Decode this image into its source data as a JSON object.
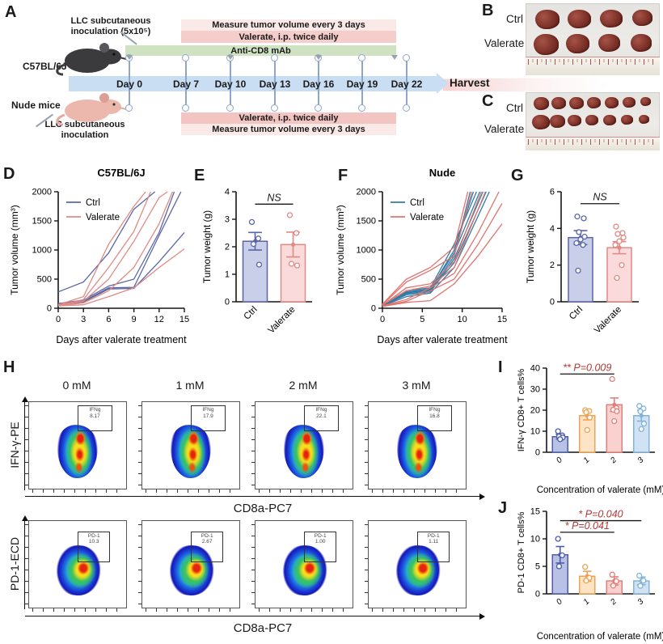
{
  "panel_a": {
    "label": "A",
    "inoculation_top": [
      "LLC subcutaneous",
      "inoculation (5x10⁵)"
    ],
    "mouse_top": "C57BL/6J",
    "mouse_bottom": "Nude mice",
    "inoculation_bottom": [
      "LLC subcutaneous",
      "inoculation"
    ],
    "bar_measure_top": "Measure tumor volume every 3 days",
    "bar_valerate_top": "Valerate, i.p. twice daily",
    "bar_anticd8": "Anti-CD8 mAb",
    "bar_valerate_bottom": "Valerate, i.p. twice daily",
    "bar_measure_bottom": "Measure tumor volume every 3 days",
    "days": [
      "Day 0",
      "Day 7",
      "Day 10",
      "Day 13",
      "Day 16",
      "Day 19",
      "Day 22"
    ],
    "harvest": "Harvest"
  },
  "panel_b": {
    "label": "B",
    "row_labels": [
      "Ctrl",
      "Valerate"
    ],
    "tumor_counts": [
      4,
      4
    ]
  },
  "panel_c": {
    "label": "C",
    "row_labels": [
      "Ctrl",
      "Valerate"
    ],
    "tumor_counts": [
      7,
      7
    ]
  },
  "panel_labels": {
    "d": "D",
    "e": "E",
    "f": "F",
    "g": "G",
    "i": "I",
    "j": "J"
  },
  "panel_h": {
    "label": "H",
    "concentrations": [
      "0 mM",
      "1 mM",
      "2 mM",
      "3 mM"
    ],
    "rows": [
      {
        "ylabel": "IFN-γ-PE",
        "xlabel": "CD8a-PC7",
        "gate_name": "IFNg",
        "gate_values": [
          "8.17",
          "17.9",
          "22.1",
          "16.8"
        ]
      },
      {
        "ylabel": "PD-1-ECD",
        "xlabel": "CD8a-PC7",
        "gate_name": "PD-1",
        "gate_values": [
          "10.3",
          "2.67",
          "1.00",
          "1.11"
        ]
      }
    ]
  },
  "chart_data": [
    {
      "panel": "D",
      "type": "line",
      "title": "C57BL/6J",
      "xlabel": "Days after valerate treatment",
      "ylabel": "Tumor volume (mm³)",
      "xlim": [
        0,
        15
      ],
      "ylim": [
        0,
        2000
      ],
      "xticks": [
        0,
        3,
        6,
        9,
        12,
        15
      ],
      "yticks": [
        0,
        500,
        1000,
        1500,
        2000
      ],
      "legend": [
        {
          "name": "Ctrl",
          "color": "#5b66a5"
        },
        {
          "name": "Valerate",
          "color": "#e08a85"
        }
      ],
      "series": [
        {
          "group": "Ctrl",
          "x": [
            0,
            3,
            6,
            9,
            11.5
          ],
          "y": [
            280,
            450,
            950,
            1700,
            2000
          ]
        },
        {
          "group": "Ctrl",
          "x": [
            0,
            3,
            6,
            9,
            12,
            13.8
          ],
          "y": [
            80,
            140,
            380,
            500,
            1300,
            2000
          ]
        },
        {
          "group": "Ctrl",
          "x": [
            0,
            3,
            6,
            9,
            12,
            14.6
          ],
          "y": [
            70,
            120,
            350,
            360,
            1250,
            2000
          ]
        },
        {
          "group": "Ctrl",
          "x": [
            0,
            3,
            6,
            9,
            12,
            15
          ],
          "y": [
            60,
            110,
            330,
            340,
            800,
            1300
          ]
        },
        {
          "group": "Valerate",
          "x": [
            0,
            3,
            6,
            9,
            10.4
          ],
          "y": [
            60,
            200,
            1100,
            1750,
            2000
          ]
        },
        {
          "group": "Valerate",
          "x": [
            0,
            3,
            6,
            9,
            11
          ],
          "y": [
            50,
            150,
            700,
            1320,
            2000
          ]
        },
        {
          "group": "Valerate",
          "x": [
            0,
            3,
            6,
            9,
            12,
            13
          ],
          "y": [
            55,
            120,
            500,
            1150,
            1900,
            2000
          ]
        },
        {
          "group": "Valerate",
          "x": [
            0,
            3,
            6,
            9,
            12,
            13.6
          ],
          "y": [
            45,
            90,
            300,
            700,
            1450,
            2000
          ]
        },
        {
          "group": "Valerate",
          "x": [
            0,
            3,
            6,
            9,
            12,
            15
          ],
          "y": [
            40,
            60,
            200,
            350,
            700,
            1020
          ]
        }
      ]
    },
    {
      "panel": "E",
      "type": "bar",
      "ylabel": "Tumor weight (g)",
      "ylim": [
        0,
        4
      ],
      "yticks": [
        0,
        1,
        2,
        3,
        4
      ],
      "categories": [
        "Ctrl",
        "Valerate"
      ],
      "values": [
        2.2,
        2.08
      ],
      "errors": [
        0.32,
        0.45
      ],
      "fills": [
        "#c9cfe9",
        "#fadada"
      ],
      "strokes": [
        "#5b66a5",
        "#e08a85"
      ],
      "points": [
        [
          2.9,
          2.3,
          2.1,
          1.35
        ],
        [
          3.15,
          2.5,
          1.38,
          1.32
        ]
      ],
      "sig": [
        {
          "label": "NS",
          "from": 0,
          "to": 1,
          "y": 3.55,
          "color": "#1a1a1a"
        }
      ]
    },
    {
      "panel": "F",
      "type": "line",
      "title": "Nude",
      "xlabel": "Days after valerate treatment",
      "ylabel": "Tumor volume (mm³)",
      "xlim": [
        0,
        15
      ],
      "ylim": [
        0,
        2000
      ],
      "xticks": [
        0,
        5,
        10,
        15
      ],
      "yticks": [
        0,
        500,
        1000,
        1500,
        2000
      ],
      "legend": [
        {
          "name": "Ctrl",
          "color": "#2f7da6"
        },
        {
          "name": "Valerate",
          "color": "#e2736e"
        }
      ],
      "series": [
        {
          "group": "Ctrl",
          "x": [
            0,
            3,
            6,
            9,
            11
          ],
          "y": [
            50,
            250,
            300,
            900,
            2000
          ]
        },
        {
          "group": "Ctrl",
          "x": [
            0,
            3,
            6,
            9,
            11.4
          ],
          "y": [
            60,
            270,
            320,
            1000,
            2000
          ]
        },
        {
          "group": "Ctrl",
          "x": [
            0,
            3,
            6,
            9,
            11.8
          ],
          "y": [
            55,
            300,
            350,
            1100,
            2000
          ]
        },
        {
          "group": "Ctrl",
          "x": [
            0,
            3,
            6,
            9,
            12.2
          ],
          "y": [
            50,
            280,
            330,
            950,
            2000
          ]
        },
        {
          "group": "Ctrl",
          "x": [
            0,
            3,
            6,
            9,
            12.6
          ],
          "y": [
            45,
            230,
            280,
            850,
            2000
          ]
        },
        {
          "group": "Ctrl",
          "x": [
            0,
            3,
            6,
            9,
            13
          ],
          "y": [
            50,
            260,
            310,
            780,
            2000
          ]
        },
        {
          "group": "Ctrl",
          "x": [
            0,
            3,
            6,
            9,
            13.4
          ],
          "y": [
            40,
            200,
            260,
            700,
            2000
          ]
        },
        {
          "group": "Valerate",
          "x": [
            0,
            3,
            6,
            9,
            10.7
          ],
          "y": [
            70,
            500,
            700,
            1050,
            2000
          ]
        },
        {
          "group": "Valerate",
          "x": [
            0,
            3,
            6,
            9,
            11.2
          ],
          "y": [
            60,
            450,
            650,
            900,
            2000
          ]
        },
        {
          "group": "Valerate",
          "x": [
            0,
            3,
            6,
            9,
            12.4
          ],
          "y": [
            50,
            350,
            420,
            800,
            2000
          ]
        },
        {
          "group": "Valerate",
          "x": [
            0,
            3,
            6,
            9,
            12.9
          ],
          "y": [
            55,
            300,
            380,
            700,
            2000
          ]
        },
        {
          "group": "Valerate",
          "x": [
            0,
            3,
            6,
            9,
            12,
            14.6
          ],
          "y": [
            40,
            150,
            350,
            600,
            1300,
            2000
          ]
        },
        {
          "group": "Valerate",
          "x": [
            0,
            3,
            6,
            9,
            12,
            15
          ],
          "y": [
            35,
            120,
            300,
            500,
            1100,
            1800
          ]
        },
        {
          "group": "Valerate",
          "x": [
            0,
            3,
            6,
            9,
            12,
            15
          ],
          "y": [
            30,
            100,
            130,
            420,
            900,
            1450
          ]
        }
      ]
    },
    {
      "panel": "G",
      "type": "bar",
      "ylabel": "Tumor weight (g)",
      "ylim": [
        0,
        6
      ],
      "yticks": [
        0,
        2,
        4,
        6
      ],
      "categories": [
        "Ctrl",
        "Valerate"
      ],
      "values": [
        3.5,
        2.95
      ],
      "errors": [
        0.38,
        0.33
      ],
      "fills": [
        "#c9cfe9",
        "#fadada"
      ],
      "strokes": [
        "#5b66a5",
        "#e08a85"
      ],
      "points": [
        [
          4.65,
          4.55,
          3.8,
          3.55,
          3.4,
          3.2,
          3.1,
          1.7
        ],
        [
          4.1,
          3.75,
          3.7,
          3.5,
          3.3,
          3.1,
          2.0,
          1.3
        ]
      ],
      "sig": [
        {
          "label": "NS",
          "from": 0,
          "to": 1,
          "y": 5.35,
          "color": "#1a1a1a"
        }
      ]
    },
    {
      "panel": "I",
      "type": "bar",
      "tickItalic": true,
      "ylabel": "IFN-γ CD8+ T cells%",
      "xlabel": "Concentration of valerate (mM)",
      "ylim": [
        0,
        40
      ],
      "yticks": [
        0,
        10,
        20,
        30,
        40
      ],
      "categories": [
        "0",
        "1",
        "2",
        "3"
      ],
      "values": [
        7.4,
        17.4,
        22.6,
        17.4
      ],
      "errors": [
        1.1,
        2.0,
        3.2,
        2.6
      ],
      "fills": [
        "#b9c1e6",
        "#fde4c6",
        "#f9d2d0",
        "#cfe3f4"
      ],
      "strokes": [
        "#4c5ca8",
        "#eda354",
        "#e37f7a",
        "#85b2d8"
      ],
      "points": [
        [
          10,
          8,
          7.5,
          7,
          6.2
        ],
        [
          20,
          19.6,
          19,
          16.5,
          10.6
        ],
        [
          34.8,
          21,
          20.2,
          19.5,
          14.8
        ],
        [
          22,
          20.8,
          19.4,
          13.6,
          11
        ]
      ],
      "sig": [
        {
          "label": "** P=0.009",
          "from": 0,
          "to": 2,
          "y": 37.2,
          "color": "#b03a36"
        }
      ]
    },
    {
      "panel": "J",
      "type": "bar",
      "tickItalic": true,
      "ylabel": "PD-1 CD8+ T cells%",
      "xlabel": "Concentration of valerate (mM)",
      "ylim": [
        0,
        15
      ],
      "yticks": [
        0,
        5,
        10,
        15
      ],
      "categories": [
        "0",
        "1",
        "2",
        "3"
      ],
      "values": [
        7.1,
        3.2,
        2.35,
        2.35
      ],
      "errors": [
        1.5,
        0.9,
        0.75,
        0.7
      ],
      "fills": [
        "#b9c1e6",
        "#fde4c6",
        "#f9d2d0",
        "#cfe3f4"
      ],
      "strokes": [
        "#4c5ca8",
        "#eda354",
        "#e37f7a",
        "#85b2d8"
      ],
      "points": [
        [
          10,
          7,
          5
        ],
        [
          4.9,
          2.9,
          2.4
        ],
        [
          3.5,
          2.3,
          1.5
        ],
        [
          3.3,
          2.4,
          1.45
        ]
      ],
      "sig": [
        {
          "label": "* P=0.040",
          "from": 0,
          "to": 3,
          "y": 13.3,
          "color": "#b03a36"
        },
        {
          "label": "* P=0.041",
          "from": 0,
          "to": 2,
          "y": 11.2,
          "color": "#b03a36"
        }
      ]
    }
  ]
}
